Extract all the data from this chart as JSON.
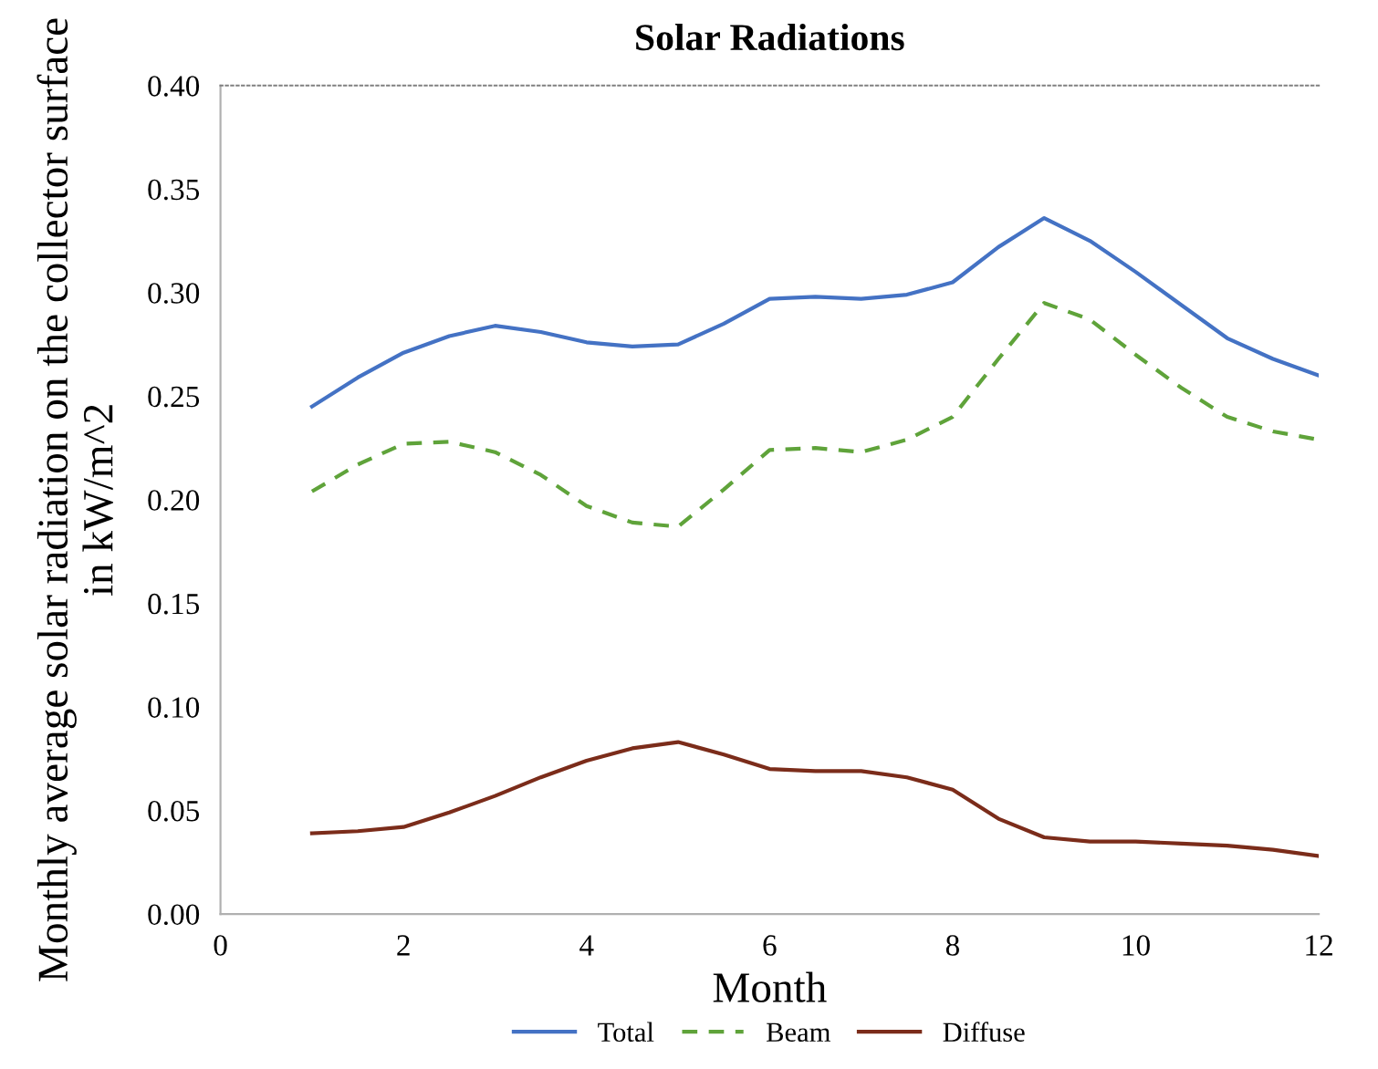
{
  "chart_data": {
    "type": "line",
    "title": "Solar Radiations",
    "xlabel": "Month",
    "ylabel": "Monthly average solar radiation on the collector surface in kW/m^2",
    "x": [
      1,
      1.5,
      2,
      2.5,
      3,
      3.5,
      4,
      4.5,
      5,
      5.5,
      6,
      6.5,
      7,
      7.5,
      8,
      8.5,
      9,
      9.5,
      10,
      10.5,
      11,
      11.5,
      12
    ],
    "series": [
      {
        "name": "Total",
        "color": "#4472c4",
        "line_style": "solid",
        "values": [
          0.245,
          0.259,
          0.271,
          0.279,
          0.284,
          0.281,
          0.276,
          0.274,
          0.275,
          0.285,
          0.297,
          0.298,
          0.297,
          0.299,
          0.305,
          0.322,
          0.336,
          0.325,
          0.31,
          0.294,
          0.278,
          0.268,
          0.26
        ]
      },
      {
        "name": "Beam",
        "color": "#5fa33a",
        "line_style": "dashed",
        "values": [
          0.204,
          0.217,
          0.227,
          0.228,
          0.223,
          0.212,
          0.197,
          0.189,
          0.187,
          0.205,
          0.224,
          0.225,
          0.223,
          0.229,
          0.24,
          0.268,
          0.295,
          0.287,
          0.27,
          0.254,
          0.24,
          0.233,
          0.229
        ]
      },
      {
        "name": "Diffuse",
        "color": "#7b2c1a",
        "line_style": "solid",
        "values": [
          0.039,
          0.04,
          0.042,
          0.049,
          0.057,
          0.066,
          0.074,
          0.08,
          0.083,
          0.077,
          0.07,
          0.069,
          0.069,
          0.066,
          0.06,
          0.046,
          0.037,
          0.035,
          0.035,
          0.034,
          0.033,
          0.031,
          0.028
        ]
      }
    ],
    "xlim": [
      0,
      12
    ],
    "xticks": [
      0,
      2,
      4,
      6,
      8,
      10,
      12
    ],
    "ylim": [
      0,
      0.4
    ],
    "yticks": [
      {
        "value": 0,
        "label": "0.00"
      },
      {
        "value": 0.05,
        "label": "0.05"
      },
      {
        "value": 0.1,
        "label": "0.10"
      },
      {
        "value": 0.15,
        "label": "0.15"
      },
      {
        "value": 0.2,
        "label": "0.20"
      },
      {
        "value": 0.25,
        "label": "0.25"
      },
      {
        "value": 0.3,
        "label": "0.30"
      },
      {
        "value": 0.35,
        "label": "0.35"
      },
      {
        "value": 0.4,
        "label": "0.40"
      }
    ],
    "grid": false,
    "legend": "bottom",
    "marker": "none"
  }
}
